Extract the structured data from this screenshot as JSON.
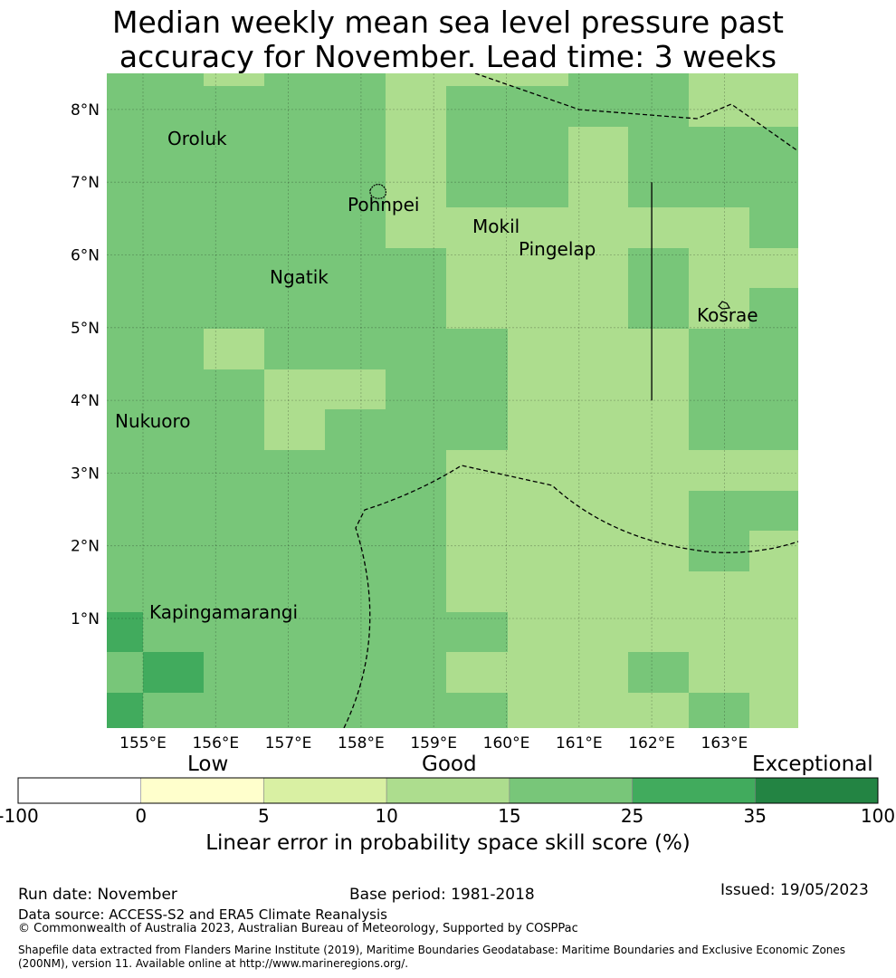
{
  "title": {
    "line1": "Median weekly mean sea level pressure past",
    "line2": "accuracy for November. Lead time: 3 weeks"
  },
  "map": {
    "lon_range": [
      154.5,
      164.0
    ],
    "lat_range": [
      -0.3,
      8.5
    ],
    "x_ticks": [
      {
        "value": 155,
        "label": "155°E"
      },
      {
        "value": 156,
        "label": "156°E"
      },
      {
        "value": 157,
        "label": "157°E"
      },
      {
        "value": 158,
        "label": "158°E"
      },
      {
        "value": 159,
        "label": "159°E"
      },
      {
        "value": 160,
        "label": "160°E"
      },
      {
        "value": 161,
        "label": "161°E"
      },
      {
        "value": 162,
        "label": "162°E"
      },
      {
        "value": 163,
        "label": "163°E"
      }
    ],
    "y_ticks": [
      {
        "value": 1,
        "label": "1°N"
      },
      {
        "value": 2,
        "label": "2°N"
      },
      {
        "value": 3,
        "label": "3°N"
      },
      {
        "value": 4,
        "label": "4°N"
      },
      {
        "value": 5,
        "label": "5°N"
      },
      {
        "value": 6,
        "label": "6°N"
      },
      {
        "value": 7,
        "label": "7°N"
      },
      {
        "value": 8,
        "label": "8°N"
      }
    ],
    "places": [
      {
        "name": "Oroluk",
        "lon": 155.3,
        "lat": 7.55
      },
      {
        "name": "Pohnpei",
        "lon": 157.8,
        "lat": 6.7
      },
      {
        "name": "Mokil",
        "lon": 159.5,
        "lat": 6.35
      },
      {
        "name": "Pingelap",
        "lon": 160.15,
        "lat": 6.05
      },
      {
        "name": "Ngatik",
        "lon": 156.7,
        "lat": 5.65
      },
      {
        "name": "Kosrae",
        "lon": 162.6,
        "lat": 5.1
      },
      {
        "name": "Nukuoro",
        "lon": 154.6,
        "lat": 3.65
      },
      {
        "name": "Kapingamarangi",
        "lon": 155.1,
        "lat": 1.05
      }
    ],
    "boundary_lon162_lat": [
      4.0,
      7.0
    ],
    "skill_grid_note": "categories: 1 = 10-15, 2 = 15-25, 3 = 25-35"
  },
  "colorbar": {
    "ticks": [
      "-100",
      "0",
      "5",
      "10",
      "15",
      "25",
      "35",
      "100"
    ],
    "colors": [
      "#ffffff",
      "#ffffcc",
      "#d9f0a3",
      "#addd8e",
      "#78c679",
      "#41ab5d",
      "#238443"
    ],
    "words": {
      "low": "Low",
      "good": "Good",
      "exceptional": "Exceptional"
    },
    "label": "Linear error in probability space skill score (%)"
  },
  "footer": {
    "run_date": "Run date: November",
    "base_period": "Base period: 1981-2018",
    "issued": "Issued: 19/05/2023",
    "data_source": "Data source: ACCESS-S2 and ERA5 Climate Reanalysis",
    "copyright": "© Commonwealth of Australia 2023, Australian Bureau of Meteorology, Supported by COSPPac",
    "shapefile_line1": "Shapefile data extracted from Flanders Marine Institute (2019), Maritime Boundaries Geodatabase: Maritime Boundaries and Exclusive Economic Zones",
    "shapefile_line2": "(200NM), version 11. Available online at http://www.marineregions.org/."
  }
}
